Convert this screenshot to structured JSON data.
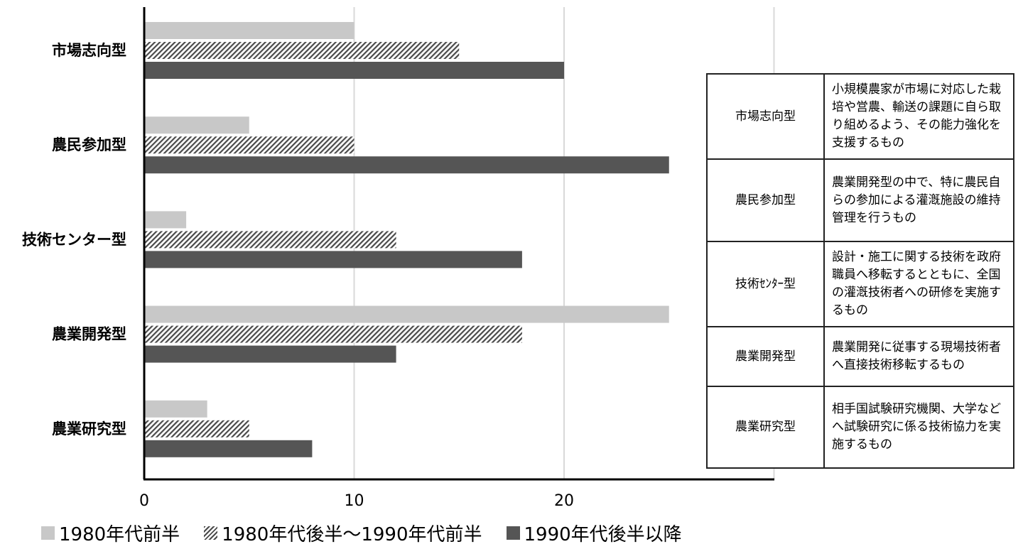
{
  "chart_data": {
    "type": "bar",
    "orientation": "horizontal",
    "categories": [
      "市場志向型",
      "農民参加型",
      "技術センター型",
      "農業開発型",
      "農業研究型"
    ],
    "series": [
      {
        "name": "1980年代前半",
        "values": [
          10,
          5,
          2,
          25,
          3
        ],
        "color": "#c8c8c8",
        "pattern": "solid"
      },
      {
        "name": "1980年代後半〜1990年代前半",
        "values": [
          15,
          10,
          12,
          18,
          5
        ],
        "color": "#4a4a4a",
        "pattern": "hatch"
      },
      {
        "name": "1990年代後半以降",
        "values": [
          20,
          25,
          18,
          12,
          8
        ],
        "color": "#555555",
        "pattern": "solid"
      }
    ],
    "xlim": [
      0,
      30
    ],
    "xticks": [
      0,
      10,
      20
    ],
    "grid": true,
    "legend_position": "bottom-left"
  },
  "legend": {
    "items": [
      {
        "label": "1980年代前半",
        "swatch": "light"
      },
      {
        "label": "1980年代後半〜1990年代前半",
        "swatch": "hatch"
      },
      {
        "label": "1990年代後半以降",
        "swatch": "dark"
      }
    ]
  },
  "table": {
    "rows": [
      {
        "name": "市場志向型",
        "desc": "小規模農家が市場に対応した栽培や営農、輸送の課題に自ら取り組めるよう、その能力強化を支援するもの"
      },
      {
        "name": "農民参加型",
        "desc": "農業開発型の中で、特に農民自らの参加による灌漑施設の維持管理を行うもの"
      },
      {
        "name": "技術ｾﾝﾀｰ型",
        "desc": "設計・施工に関する技術を政府職員へ移転するとともに、全国の灌漑技術者への研修を実施するもの"
      },
      {
        "name": "農業開発型",
        "desc": "農業開発に従事する現場技術者へ直接技術移転するもの"
      },
      {
        "name": "農業研究型",
        "desc": "相手国試験研究機関、大学などへ試験研究に係る技術協力を実施するもの"
      }
    ]
  }
}
